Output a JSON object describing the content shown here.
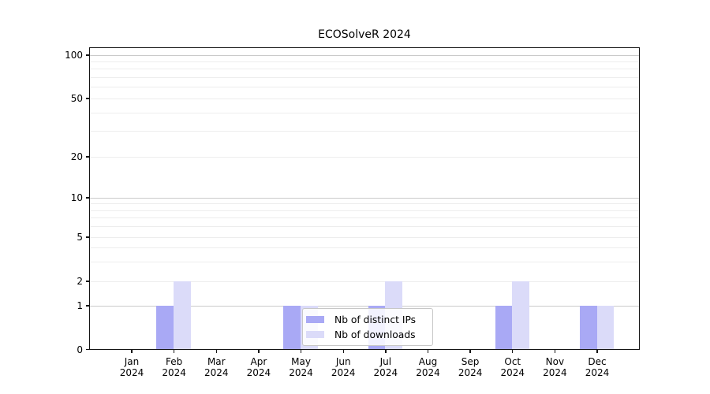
{
  "chart_data": {
    "type": "bar",
    "title": "ECOSolveR 2024",
    "categories": [
      "Jan 2024",
      "Feb 2024",
      "Mar 2024",
      "Apr 2024",
      "May 2024",
      "Jun 2024",
      "Jul 2024",
      "Aug 2024",
      "Sep 2024",
      "Oct 2024",
      "Nov 2024",
      "Dec 2024"
    ],
    "series": [
      {
        "name": "Nb of distinct IPs",
        "color": "#a9a9f5",
        "values": [
          0,
          1,
          0,
          0,
          1,
          0,
          1,
          0,
          0,
          1,
          0,
          1
        ]
      },
      {
        "name": "Nb of downloads",
        "color": "#dbdbf9",
        "values": [
          0,
          2,
          0,
          0,
          1,
          0,
          2,
          0,
          0,
          2,
          0,
          1
        ]
      }
    ],
    "xlabel": "",
    "ylabel": "",
    "yaxis": {
      "scale": "symlog",
      "tick_labels": [
        "0",
        "1",
        "2",
        "5",
        "10",
        "20",
        "50",
        "100"
      ],
      "tick_values": [
        0,
        1,
        2,
        5,
        10,
        20,
        50,
        100
      ],
      "ylim": [
        0,
        130
      ]
    },
    "grid": {
      "horizontal_major": true,
      "horizontal_minor": true,
      "vertical": false
    },
    "legend": {
      "position": "inside-bottom-center",
      "items": [
        "Nb of distinct IPs",
        "Nb of downloads"
      ]
    }
  },
  "colors": {
    "grid_major": "#c9c9c9",
    "grid_minor": "#ededed",
    "spine": "#151515",
    "text": "#000000",
    "legend_border": "#c7c7c7",
    "background": "#ffffff"
  }
}
